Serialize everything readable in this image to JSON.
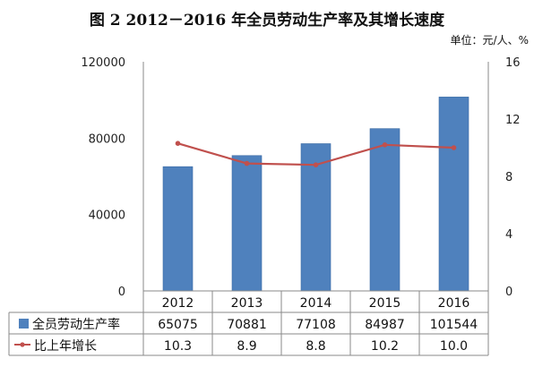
{
  "title": "图 2    2012－2016 年全员劳动生产率及其增长速度",
  "unit": "单位：元/人、%",
  "chart_data": {
    "type": "bar+line",
    "categories": [
      "2012",
      "2013",
      "2014",
      "2015",
      "2016"
    ],
    "series": [
      {
        "name": "全员劳动生产率",
        "type": "bar",
        "axis": "left",
        "color": "#4F81BD",
        "values": [
          65075,
          70881,
          77108,
          84987,
          101544
        ],
        "labels": [
          "65075",
          "70881",
          "77108",
          "84987",
          "101544"
        ]
      },
      {
        "name": "比上年增长",
        "type": "line",
        "axis": "right",
        "color": "#C0504D",
        "values": [
          10.3,
          8.9,
          8.8,
          10.2,
          10.0
        ],
        "labels": [
          "10.3",
          "8.9",
          "8.8",
          "10.2",
          "10.0"
        ]
      }
    ],
    "y_left": {
      "min": 0,
      "max": 120000,
      "ticks": [
        0,
        40000,
        80000,
        120000
      ]
    },
    "y_right": {
      "min": 0,
      "max": 16,
      "ticks": [
        0,
        4,
        8,
        12,
        16
      ]
    },
    "legend": "data-table"
  }
}
